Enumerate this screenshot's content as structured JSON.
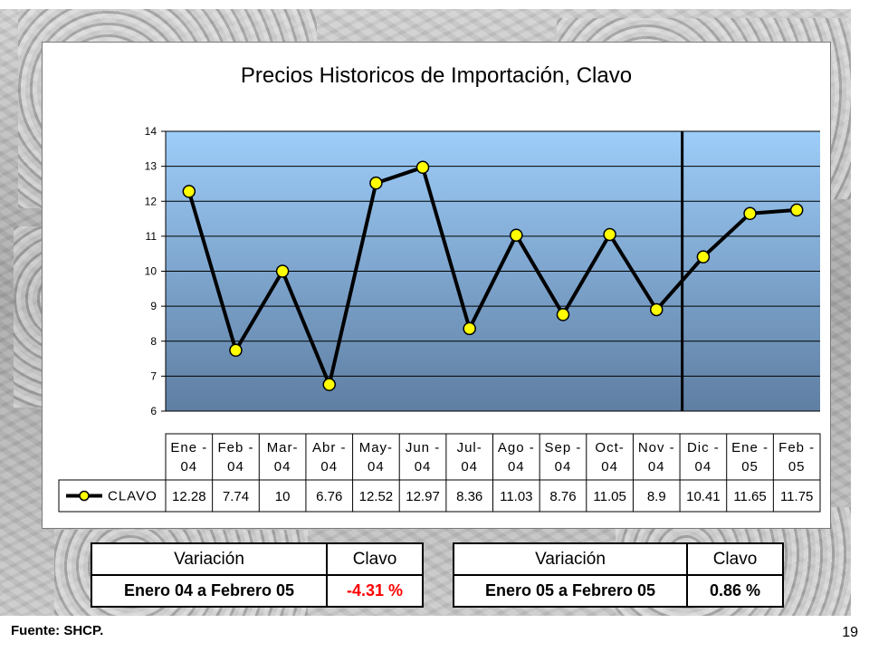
{
  "chart_data": {
    "type": "line",
    "title": "Precios Historicos de Importación, Clavo",
    "categories": [
      "Ene-04",
      "Feb-04",
      "Mar-04",
      "Abr-04",
      "May-04",
      "Jun-04",
      "Jul-04",
      "Ago-04",
      "Sep-04",
      "Oct-04",
      "Nov-04",
      "Dic-04",
      "Ene-05",
      "Feb-05"
    ],
    "category_lines": [
      [
        "Ene -",
        "04"
      ],
      [
        "Feb -",
        "04"
      ],
      [
        "Mar-",
        "04"
      ],
      [
        "Abr -",
        "04"
      ],
      [
        "May-",
        "04"
      ],
      [
        "Jun -",
        "04"
      ],
      [
        "Jul-",
        "04"
      ],
      [
        "Ago -",
        "04"
      ],
      [
        "Sep -",
        "04"
      ],
      [
        "Oct-",
        "04"
      ],
      [
        "Nov -",
        "04"
      ],
      [
        "Dic -",
        "04"
      ],
      [
        "Ene -",
        "05"
      ],
      [
        "Feb -",
        "05"
      ]
    ],
    "series": [
      {
        "name": "CLAVO",
        "values": [
          12.28,
          7.74,
          10,
          6.76,
          12.52,
          12.97,
          8.36,
          11.03,
          8.76,
          11.05,
          8.9,
          10.41,
          11.65,
          11.75
        ],
        "labels": [
          "12.28",
          "7.74",
          "10",
          "6.76",
          "12.52",
          "12.97",
          "8.36",
          "11.03",
          "8.76",
          "11.05",
          "8.9",
          "10.41",
          "11.65",
          "11.75"
        ]
      }
    ],
    "ylim": [
      6,
      14
    ],
    "yticks": [
      6,
      7,
      8,
      9,
      10,
      11,
      12,
      13,
      14
    ],
    "grid": true,
    "legend": "data-table",
    "vertical_marker_between": [
      "Nov-04",
      "Dic-04"
    ],
    "colors": {
      "plot_top": "#9dcdf9",
      "plot_bottom": "#5f7ea2",
      "line": "#000000",
      "marker": "#ffff00"
    }
  },
  "variation_tables": [
    {
      "col1_header": "Variación",
      "col2_header": "Clavo",
      "period": "Enero 04 a Febrero 05",
      "value": "-4.31 %",
      "value_color": "#ff0000"
    },
    {
      "col1_header": "Variación",
      "col2_header": "Clavo",
      "period": "Enero 05 a Febrero 05",
      "value": "0.86 %",
      "value_color": "#000000"
    }
  ],
  "footer": {
    "source": "Fuente: SHCP.",
    "page_number": "19"
  }
}
